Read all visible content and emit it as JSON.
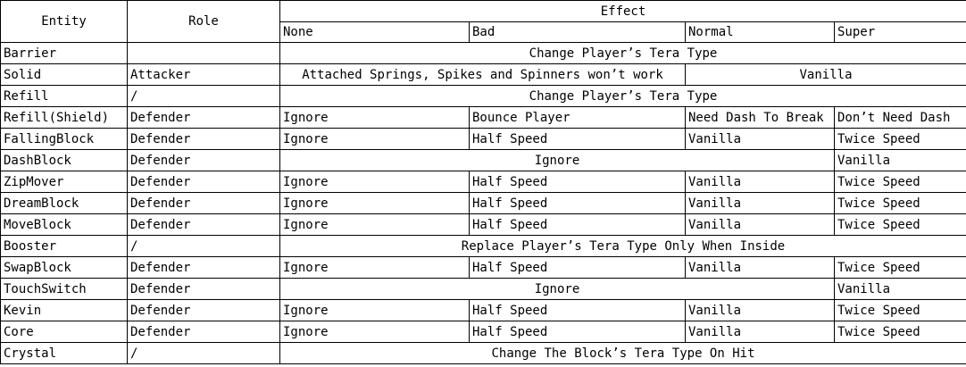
{
  "headers": {
    "entity": "Entity",
    "role": "Role",
    "effect": "Effect",
    "none": "None",
    "bad": "Bad",
    "normal": "Normal",
    "super": "Super"
  },
  "rows": {
    "barrier": {
      "entity": "Barrier",
      "role": "",
      "span_all": "Change Player’s Tera Type"
    },
    "solid": {
      "entity": "Solid",
      "role": "Attacker",
      "none_bad": "Attached Springs, Spikes and Spinners won’t work",
      "normal_super": "Vanilla"
    },
    "refill": {
      "entity": "Refill",
      "role": "/",
      "span_all": "Change Player’s Tera Type"
    },
    "refill_shield": {
      "entity": "Refill(Shield)",
      "role": "Defender",
      "none": "Ignore",
      "bad": "Bounce Player",
      "normal": "Need Dash To Break",
      "super": "Don’t Need Dash"
    },
    "falling": {
      "entity": "FallingBlock",
      "role": "Defender",
      "none": "Ignore",
      "bad": "Half Speed",
      "normal": "Vanilla",
      "super": "Twice Speed"
    },
    "dash": {
      "entity": "DashBlock",
      "role": "Defender",
      "none_normal": "Ignore",
      "super": "Vanilla"
    },
    "zip": {
      "entity": "ZipMover",
      "role": "Defender",
      "none": "Ignore",
      "bad": "Half Speed",
      "normal": "Vanilla",
      "super": "Twice Speed"
    },
    "dream": {
      "entity": "DreamBlock",
      "role": "Defender",
      "none": "Ignore",
      "bad": "Half Speed",
      "normal": "Vanilla",
      "super": "Twice Speed"
    },
    "move": {
      "entity": "MoveBlock",
      "role": "Defender",
      "none": "Ignore",
      "bad": "Half Speed",
      "normal": "Vanilla",
      "super": "Twice Speed"
    },
    "booster": {
      "entity": "Booster",
      "role": "/",
      "span_all": "Replace Player’s Tera Type Only When Inside"
    },
    "swap": {
      "entity": "SwapBlock",
      "role": "Defender",
      "none": "Ignore",
      "bad": "Half Speed",
      "normal": "Vanilla",
      "super": "Twice Speed"
    },
    "touch": {
      "entity": "TouchSwitch",
      "role": "Defender",
      "none_normal": "Ignore",
      "super": "Vanilla"
    },
    "kevin": {
      "entity": "Kevin",
      "role": "Defender",
      "none": "Ignore",
      "bad": "Half Speed",
      "normal": "Vanilla",
      "super": "Twice Speed"
    },
    "core": {
      "entity": "Core",
      "role": "Defender",
      "none": "Ignore",
      "bad": "Half Speed",
      "normal": "Vanilla",
      "super": "Twice Speed"
    },
    "crystal": {
      "entity": "Crystal",
      "role": "/",
      "span_all": "Change The Block’s Tera Type On Hit"
    }
  }
}
